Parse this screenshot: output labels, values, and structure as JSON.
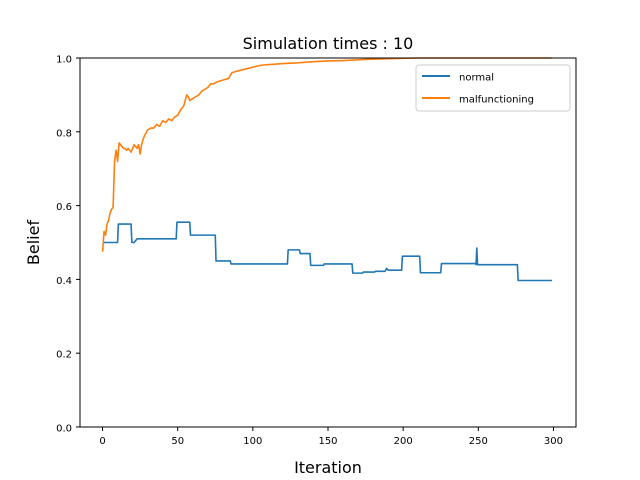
{
  "chart_data": {
    "type": "line",
    "title": "Simulation times : 10",
    "xlabel": "Iteration",
    "ylabel": "Belief",
    "xlim": [
      -15,
      315
    ],
    "ylim": [
      0.0,
      1.0
    ],
    "xticks": [
      0,
      50,
      100,
      150,
      200,
      250,
      300
    ],
    "xtick_labels": [
      "0",
      "50",
      "100",
      "150",
      "200",
      "250",
      "300"
    ],
    "yticks": [
      0.0,
      0.2,
      0.4,
      0.6,
      0.8,
      1.0
    ],
    "ytick_labels": [
      "0.0",
      "0.2",
      "0.4",
      "0.6",
      "0.8",
      "1.0"
    ],
    "grid": false,
    "legend_position": "top-right",
    "series": [
      {
        "name": "normal",
        "color": "#1f77b4",
        "x": [
          0,
          10,
          10.5,
          19,
          19.5,
          21,
          23,
          49,
          49.5,
          58,
          58.5,
          75,
          75.5,
          85,
          85.5,
          123,
          123.5,
          131,
          131.5,
          138,
          138.5,
          147,
          147.5,
          166,
          166.5,
          173,
          173.5,
          181,
          181.5,
          188,
          189,
          190,
          199,
          199.5,
          211,
          211.5,
          225,
          225.5,
          248,
          248.5,
          249,
          249.5,
          276,
          276.5,
          299
        ],
        "y": [
          0.5,
          0.5,
          0.55,
          0.55,
          0.5,
          0.5,
          0.51,
          0.51,
          0.555,
          0.555,
          0.52,
          0.52,
          0.45,
          0.45,
          0.442,
          0.442,
          0.48,
          0.48,
          0.47,
          0.47,
          0.438,
          0.438,
          0.442,
          0.442,
          0.417,
          0.417,
          0.42,
          0.42,
          0.422,
          0.422,
          0.43,
          0.425,
          0.425,
          0.463,
          0.463,
          0.418,
          0.418,
          0.443,
          0.443,
          0.44,
          0.485,
          0.44,
          0.44,
          0.397,
          0.397
        ]
      },
      {
        "name": "malfunctioning",
        "color": "#ff7f0e",
        "x": [
          0,
          1,
          2,
          3,
          4,
          5,
          6,
          7,
          8,
          9,
          10,
          11,
          12,
          13,
          14,
          15,
          16,
          17,
          18,
          19,
          20,
          21,
          22,
          23,
          24,
          25,
          26,
          27,
          28,
          30,
          32,
          34,
          36,
          38,
          40,
          42,
          44,
          46,
          48,
          50,
          52,
          54,
          56,
          57,
          58,
          60,
          62,
          64,
          66,
          68,
          70,
          72,
          74,
          76,
          80,
          84,
          86,
          90,
          95,
          100,
          105,
          110,
          120,
          130,
          140,
          150,
          160,
          170,
          180,
          190,
          200,
          210,
          220,
          240,
          260,
          280,
          299
        ],
        "y": [
          0.475,
          0.53,
          0.52,
          0.55,
          0.56,
          0.58,
          0.59,
          0.595,
          0.72,
          0.75,
          0.72,
          0.77,
          0.765,
          0.76,
          0.755,
          0.755,
          0.75,
          0.755,
          0.75,
          0.745,
          0.755,
          0.765,
          0.76,
          0.755,
          0.765,
          0.74,
          0.765,
          0.78,
          0.79,
          0.805,
          0.81,
          0.81,
          0.82,
          0.815,
          0.83,
          0.825,
          0.835,
          0.83,
          0.84,
          0.845,
          0.86,
          0.87,
          0.9,
          0.895,
          0.885,
          0.89,
          0.895,
          0.9,
          0.91,
          0.915,
          0.92,
          0.93,
          0.93,
          0.935,
          0.94,
          0.945,
          0.96,
          0.965,
          0.97,
          0.975,
          0.98,
          0.982,
          0.985,
          0.987,
          0.99,
          0.992,
          0.993,
          0.995,
          0.997,
          0.998,
          0.999,
          1.0,
          1.0,
          1.0,
          1.0,
          1.0,
          1.0
        ]
      }
    ]
  }
}
